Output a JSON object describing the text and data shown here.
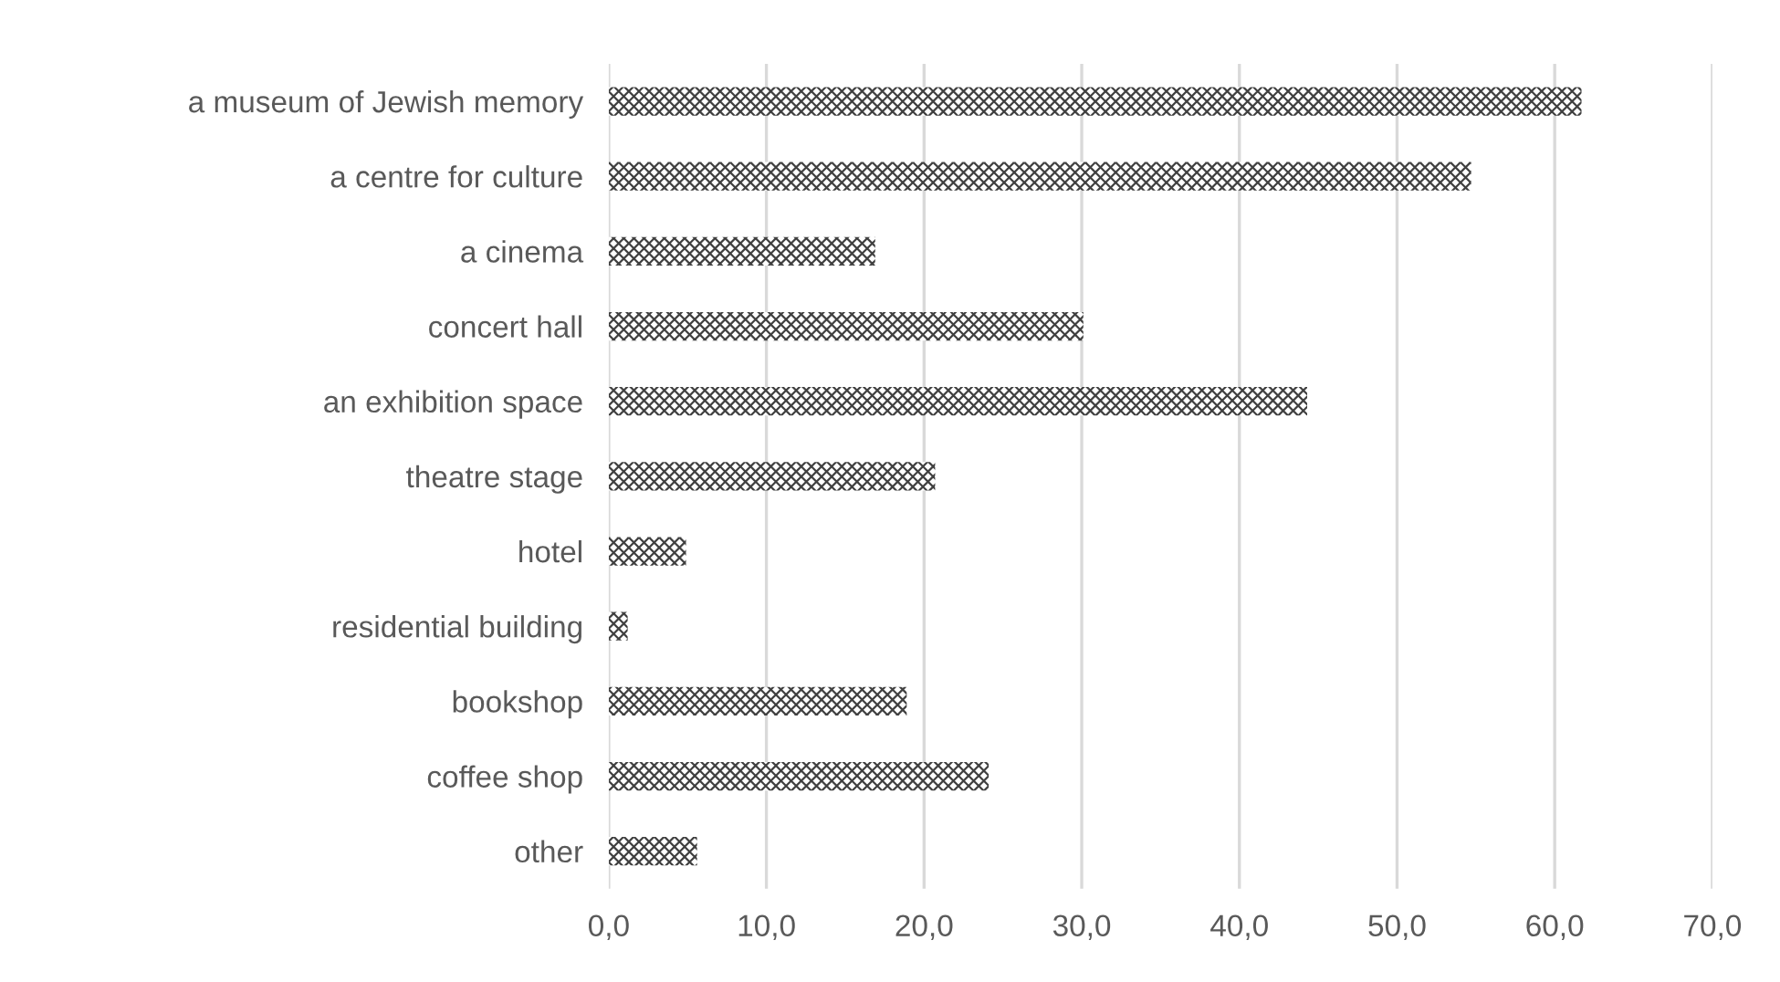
{
  "chart_data": {
    "type": "bar",
    "orientation": "horizontal",
    "categories": [
      "a museum of Jewish memory",
      "a centre for culture",
      "a cinema",
      "concert hall",
      "an exhibition space",
      "theatre stage",
      "hotel",
      "residential building",
      "bookshop",
      "coffee shop",
      "other"
    ],
    "values": [
      61.7,
      54.7,
      16.9,
      30.1,
      44.3,
      20.7,
      4.9,
      1.2,
      18.9,
      24.1,
      5.6
    ],
    "color": "#404040",
    "xlim": [
      0,
      70
    ],
    "xticks": [
      {
        "value": 0,
        "label": "0,0"
      },
      {
        "value": 10,
        "label": "10,0"
      },
      {
        "value": 20,
        "label": "20,0"
      },
      {
        "value": 30,
        "label": "30,0"
      },
      {
        "value": 40,
        "label": "40,0"
      },
      {
        "value": 50,
        "label": "50,0"
      },
      {
        "value": 60,
        "label": "60,0"
      },
      {
        "value": 70,
        "label": "70,0"
      }
    ],
    "grid": "x"
  }
}
